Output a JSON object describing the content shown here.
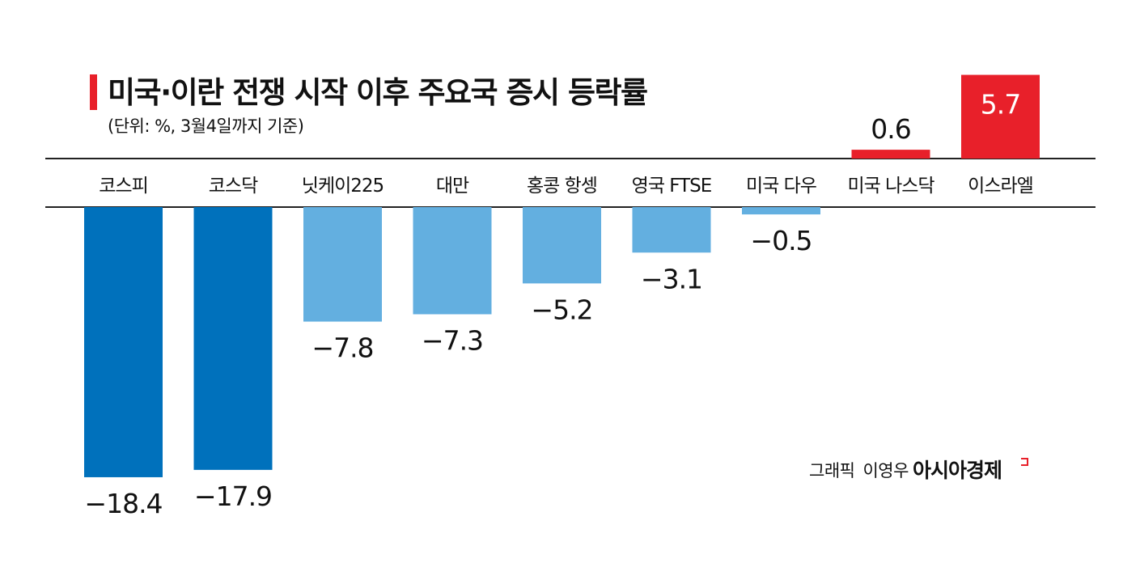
{
  "title": "미국·이란 전쟁 시작 이후 주요국 증시 등락률",
  "subtitle": "(단위: %, 3월4일까지 기준)",
  "credit": {
    "label": "그래픽",
    "author": "이영우"
  },
  "brand": "아시아경제",
  "colors": {
    "korea": "#0071bc",
    "other_negative": "#63afe0",
    "positive": "#e8202a",
    "axis_line": "#222222"
  },
  "chart_data": {
    "type": "bar",
    "title": "미국·이란 전쟁 시작 이후 주요국 증시 등락률",
    "subtitle": "(단위: %, 3월4일까지 기준)",
    "categories": [
      "코스피",
      "코스닥",
      "닛케이225",
      "대만",
      "홍콩 항셍",
      "영국 FTSE",
      "미국 다우",
      "미국 나스닥",
      "이스라엘"
    ],
    "values": [
      -18.4,
      -17.9,
      -7.8,
      -7.3,
      -5.2,
      -3.1,
      -0.5,
      0.6,
      5.7
    ],
    "value_labels": [
      "−18.4",
      "−17.9",
      "−7.8",
      "−7.3",
      "−5.2",
      "−3.1",
      "−0.5",
      "0.6",
      "5.7"
    ],
    "bar_color_groups": [
      "korea",
      "korea",
      "other_negative",
      "other_negative",
      "other_negative",
      "other_negative",
      "other_negative",
      "positive",
      "positive"
    ],
    "xlabel": "",
    "ylabel": "",
    "grid": false,
    "legend": "none"
  }
}
